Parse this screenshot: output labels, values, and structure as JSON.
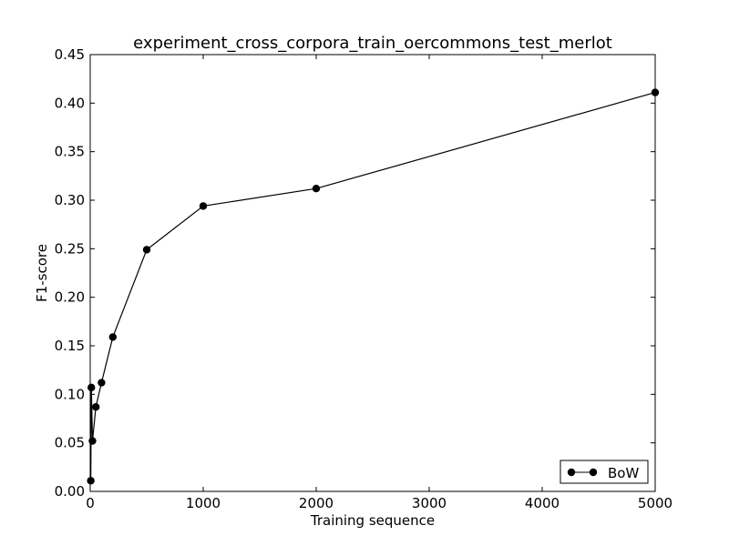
{
  "chart_data": {
    "type": "line",
    "title": "experiment_cross_corpora_train_oercommons_test_merlot",
    "xlabel": "Training sequence",
    "ylabel": "F1-score",
    "xlim": [
      0,
      5000
    ],
    "ylim": [
      0.0,
      0.45
    ],
    "xticks": [
      0,
      1000,
      2000,
      3000,
      4000,
      5000
    ],
    "yticks": [
      0.0,
      0.05,
      0.1,
      0.15,
      0.2,
      0.25,
      0.3,
      0.35,
      0.4,
      0.45
    ],
    "grid": false,
    "legend": {
      "position": "bottom-right"
    },
    "series": [
      {
        "name": "BoW",
        "color": "#000000",
        "marker": "circle",
        "x": [
          5,
          10,
          20,
          50,
          100,
          200,
          500,
          1000,
          2000,
          5000
        ],
        "y": [
          0.011,
          0.107,
          0.052,
          0.087,
          0.112,
          0.159,
          0.249,
          0.294,
          0.312,
          0.411
        ]
      }
    ]
  }
}
